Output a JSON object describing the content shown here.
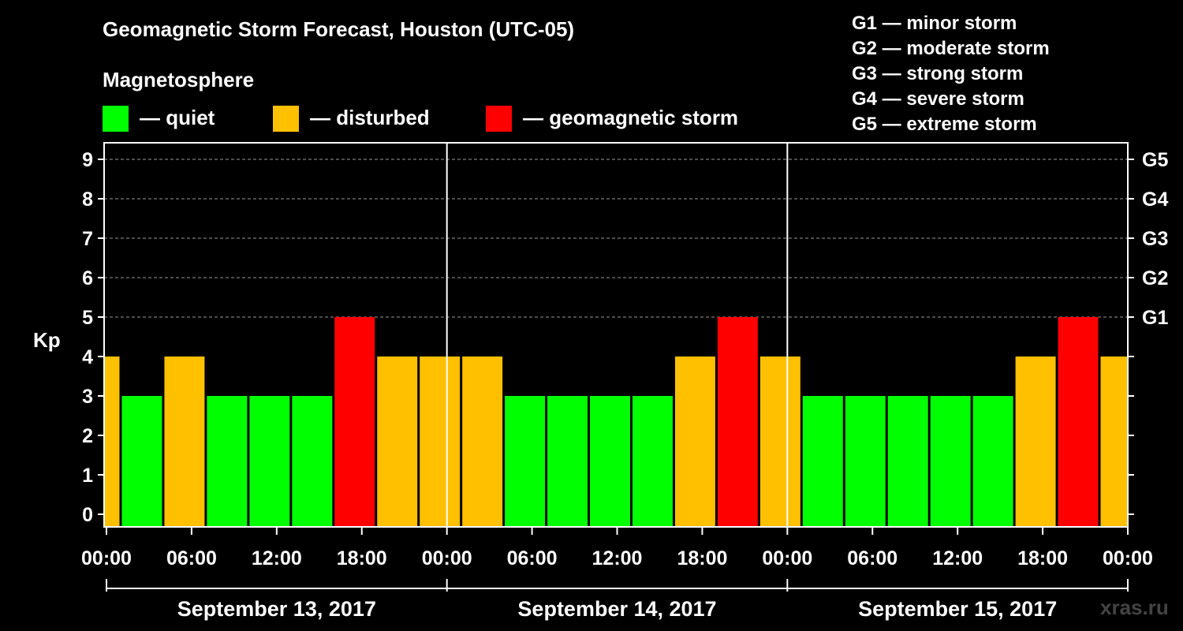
{
  "title": "Geomagnetic Storm Forecast, Houston (UTC-05)",
  "legend": {
    "heading": "Magnetosphere",
    "items": [
      {
        "label": "— quiet",
        "color": "#00ff00"
      },
      {
        "label": "— disturbed",
        "color": "#ffc000"
      },
      {
        "label": "— geomagnetic storm",
        "color": "#ff0000"
      }
    ]
  },
  "g_scale": [
    "G1 — minor storm",
    "G2 — moderate storm",
    "G3 — strong storm",
    "G4 — severe storm",
    "G5 — extreme storm"
  ],
  "watermark": "xras.ru",
  "chart_data": {
    "type": "bar",
    "ylabel": "Kp",
    "ylim": [
      0,
      9
    ],
    "y_ticks": [
      0,
      1,
      2,
      3,
      4,
      5,
      6,
      7,
      8,
      9
    ],
    "right_axis_labels": [
      {
        "kp": 5,
        "label": "G1"
      },
      {
        "kp": 6,
        "label": "G2"
      },
      {
        "kp": 7,
        "label": "G3"
      },
      {
        "kp": 8,
        "label": "G4"
      },
      {
        "kp": 9,
        "label": "G5"
      }
    ],
    "x_tick_labels": [
      "00:00",
      "06:00",
      "12:00",
      "18:00",
      "00:00",
      "06:00",
      "12:00",
      "18:00",
      "00:00",
      "06:00",
      "12:00",
      "18:00",
      "00:00"
    ],
    "dates": [
      "September 13, 2017",
      "September 14, 2017",
      "September 15, 2017"
    ],
    "grid": true,
    "colors": {
      "quiet": "#00ff00",
      "disturbed": "#ffc000",
      "storm": "#ff0000"
    },
    "bars": [
      {
        "start_hour": -2,
        "kp": 4
      },
      {
        "start_hour": 1,
        "kp": 3
      },
      {
        "start_hour": 4,
        "kp": 4
      },
      {
        "start_hour": 7,
        "kp": 3
      },
      {
        "start_hour": 10,
        "kp": 3
      },
      {
        "start_hour": 13,
        "kp": 3
      },
      {
        "start_hour": 16,
        "kp": 5
      },
      {
        "start_hour": 19,
        "kp": 4
      },
      {
        "start_hour": 22,
        "kp": 4
      },
      {
        "start_hour": 25,
        "kp": 4
      },
      {
        "start_hour": 28,
        "kp": 3
      },
      {
        "start_hour": 31,
        "kp": 3
      },
      {
        "start_hour": 34,
        "kp": 3
      },
      {
        "start_hour": 37,
        "kp": 3
      },
      {
        "start_hour": 40,
        "kp": 4
      },
      {
        "start_hour": 43,
        "kp": 5
      },
      {
        "start_hour": 46,
        "kp": 4
      },
      {
        "start_hour": 49,
        "kp": 3
      },
      {
        "start_hour": 52,
        "kp": 3
      },
      {
        "start_hour": 55,
        "kp": 3
      },
      {
        "start_hour": 58,
        "kp": 3
      },
      {
        "start_hour": 61,
        "kp": 3
      },
      {
        "start_hour": 64,
        "kp": 4
      },
      {
        "start_hour": 67,
        "kp": 5
      },
      {
        "start_hour": 70,
        "kp": 4
      }
    ]
  }
}
